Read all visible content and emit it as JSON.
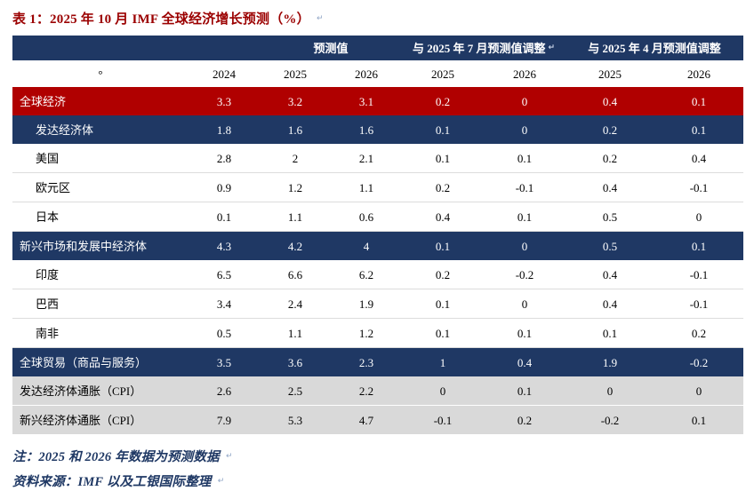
{
  "title": "表 1：2025 年 10 月 IMF 全球经济增长预测（%）",
  "colors": {
    "title_red": "#9B0000",
    "row_red": "#B00000",
    "header_blue": "#1F3864",
    "row_gray": "#D9D9D9",
    "note_blue": "#1F3864"
  },
  "marks": {
    "end_of_line": "↵",
    "end_of_cell": "°"
  },
  "table": {
    "header_groups": {
      "forecast": "预测值",
      "adj_jul": "与 2025 年 7 月预测值调整",
      "adj_apr": "与 2025 年 4 月预测值调整"
    },
    "year_headers": [
      "2024",
      "2025",
      "2026",
      "2025",
      "2026",
      "2025",
      "2026"
    ],
    "rows": [
      {
        "label": "全球经济",
        "style": "red",
        "indent": 0,
        "values": [
          "3.3",
          "3.2",
          "3.1",
          "0.2",
          "0",
          "0.4",
          "0.1"
        ]
      },
      {
        "label": "发达经济体",
        "style": "blue",
        "indent": 1,
        "values": [
          "1.8",
          "1.6",
          "1.6",
          "0.1",
          "0",
          "0.2",
          "0.1"
        ]
      },
      {
        "label": "美国",
        "style": "white",
        "indent": 1,
        "values": [
          "2.8",
          "2",
          "2.1",
          "0.1",
          "0.1",
          "0.2",
          "0.4"
        ]
      },
      {
        "label": "欧元区",
        "style": "white",
        "indent": 1,
        "values": [
          "0.9",
          "1.2",
          "1.1",
          "0.2",
          "-0.1",
          "0.4",
          "-0.1"
        ]
      },
      {
        "label": "日本",
        "style": "white",
        "indent": 1,
        "values": [
          "0.1",
          "1.1",
          "0.6",
          "0.4",
          "0.1",
          "0.5",
          "0"
        ]
      },
      {
        "label": "新兴市场和发展中经济体",
        "style": "blue",
        "indent": 0,
        "values": [
          "4.3",
          "4.2",
          "4",
          "0.1",
          "0",
          "0.5",
          "0.1"
        ]
      },
      {
        "label": "印度",
        "style": "white",
        "indent": 1,
        "values": [
          "6.5",
          "6.6",
          "6.2",
          "0.2",
          "-0.2",
          "0.4",
          "-0.1"
        ]
      },
      {
        "label": "巴西",
        "style": "white",
        "indent": 1,
        "values": [
          "3.4",
          "2.4",
          "1.9",
          "0.1",
          "0",
          "0.4",
          "-0.1"
        ]
      },
      {
        "label": "南非",
        "style": "white",
        "indent": 1,
        "values": [
          "0.5",
          "1.1",
          "1.2",
          "0.1",
          "0.1",
          "0.1",
          "0.2"
        ]
      },
      {
        "label": "全球贸易（商品与服务）",
        "style": "blue",
        "indent": 0,
        "values": [
          "3.5",
          "3.6",
          "2.3",
          "1",
          "0.4",
          "1.9",
          "-0.2"
        ]
      },
      {
        "label": "发达经济体通胀（CPI）",
        "style": "gray",
        "indent": 0,
        "values": [
          "2.6",
          "2.5",
          "2.2",
          "0",
          "0.1",
          "0",
          "0"
        ]
      },
      {
        "label": "新兴经济体通胀（CPI）",
        "style": "gray",
        "indent": 0,
        "values": [
          "7.9",
          "5.3",
          "4.7",
          "-0.1",
          "0.2",
          "-0.2",
          "0.1"
        ]
      }
    ]
  },
  "notes": [
    "注：2025 和 2026 年数据为预测数据",
    "资料来源：IMF 以及工银国际整理"
  ]
}
